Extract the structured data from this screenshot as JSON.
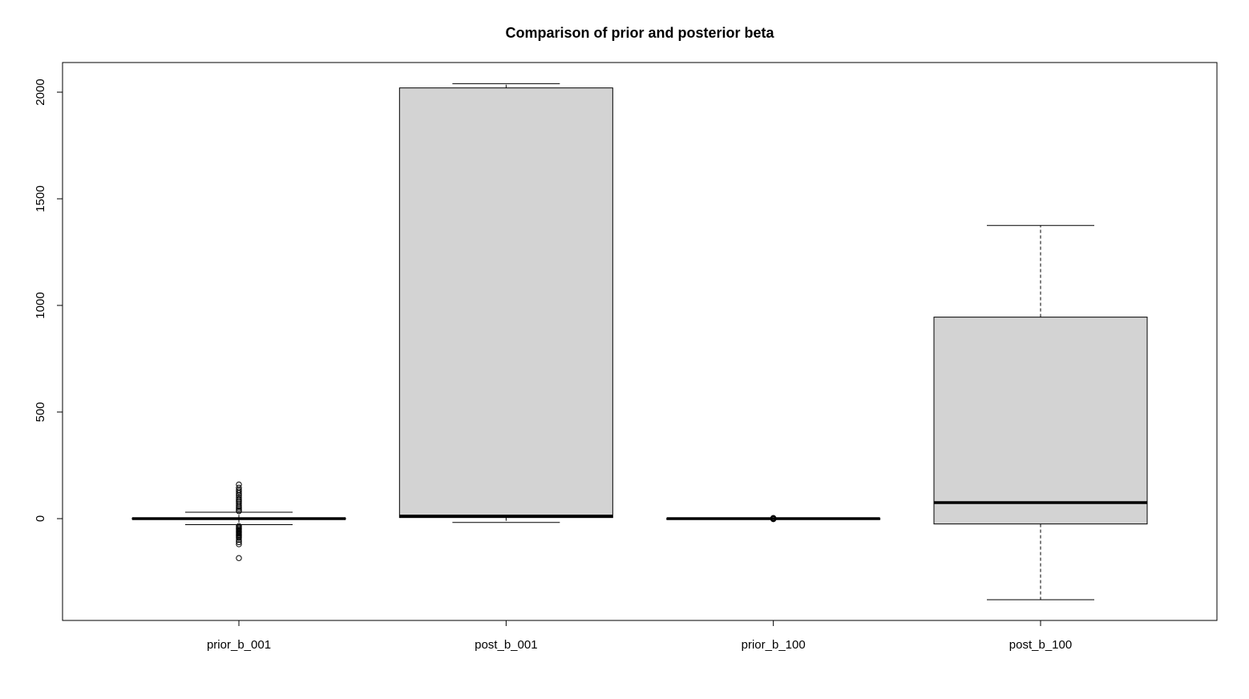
{
  "chart_data": {
    "type": "boxplot",
    "title": "Comparison of prior and posterior beta",
    "xlabel": "",
    "ylabel": "",
    "ylim": [
      -480,
      2140
    ],
    "y_ticks": [
      0,
      500,
      1000,
      1500,
      2000
    ],
    "y_tick_labels": [
      "0",
      "500",
      "1000",
      "1500",
      "2000"
    ],
    "grid": false,
    "legend": "none",
    "colors": {
      "box_fill": "#d3d3d3",
      "stroke": "#000000",
      "background": "#ffffff"
    },
    "categories": [
      "prior_b_001",
      "post_b_001",
      "prior_b_100",
      "post_b_100"
    ],
    "boxes": [
      {
        "name": "prior_b_001",
        "whisker_low": -28,
        "q1": -3,
        "median": 0,
        "q3": 3,
        "whisker_high": 30,
        "outliers": [
          160,
          145,
          135,
          128,
          120,
          110,
          100,
          92,
          85,
          78,
          70,
          62,
          55,
          48,
          40,
          35,
          -35,
          -40,
          -45,
          -50,
          -55,
          -60,
          -65,
          -70,
          -75,
          -80,
          -85,
          -90,
          -100,
          -110,
          -120,
          -185
        ]
      },
      {
        "name": "post_b_001",
        "whisker_low": -18,
        "q1": 5,
        "median": 12,
        "q3": 2020,
        "whisker_high": 2040,
        "outliers": []
      },
      {
        "name": "prior_b_100",
        "whisker_low": -1,
        "q1": -0.5,
        "median": 0,
        "q3": 0.5,
        "whisker_high": 1,
        "outliers": [
          3,
          1.5,
          -1.5,
          -2.5
        ]
      },
      {
        "name": "post_b_100",
        "whisker_low": -380,
        "q1": -25,
        "median": 75,
        "q3": 945,
        "whisker_high": 1375,
        "outliers": []
      }
    ]
  }
}
